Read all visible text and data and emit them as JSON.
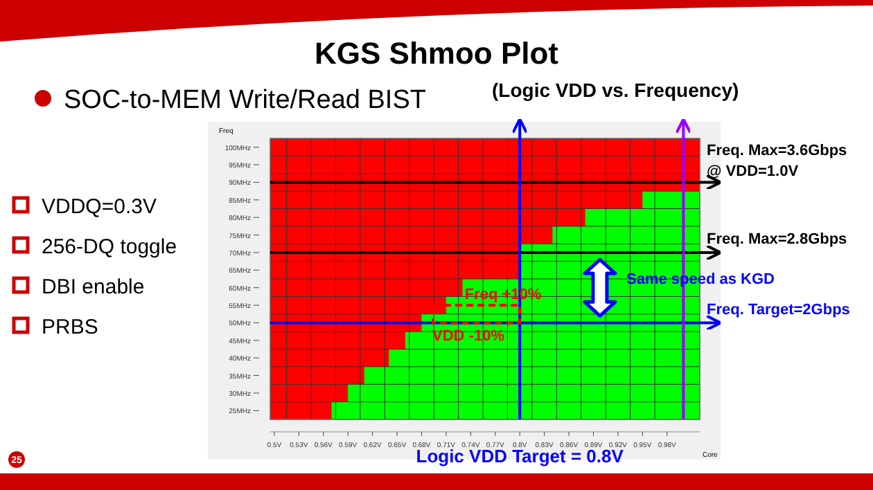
{
  "chart_data": {
    "type": "area",
    "title": "KGS Shmoo Plot",
    "subtitle": "SOC-to-MEM Write/Read BIST",
    "xlabel": "Core",
    "ylabel": "Freq",
    "x": [
      0.57,
      0.59,
      0.61,
      0.64,
      0.66,
      0.68,
      0.71,
      0.73,
      0.8,
      0.84,
      0.88,
      0.95,
      1.02
    ],
    "series": [
      {
        "color": "#00ff00",
        "values": [
          27.5,
          32.5,
          37.5,
          42.5,
          47.5,
          52.5,
          57.5,
          62.5,
          72.5,
          77.5,
          82.5,
          87.5,
          87.5
        ]
      }
    ],
    "xlim": [
      0.495,
      1.02
    ],
    "ylim": [
      22.5,
      102.5
    ],
    "xticks": [
      {
        "value": 0.5,
        "label": "0.5V"
      },
      {
        "value": 0.53,
        "label": "0.53V"
      },
      {
        "value": 0.56,
        "label": "0.56V"
      },
      {
        "value": 0.59,
        "label": "0.59V"
      },
      {
        "value": 0.62,
        "label": "0.62V"
      },
      {
        "value": 0.65,
        "label": "0.65V"
      },
      {
        "value": 0.68,
        "label": "0.68V"
      },
      {
        "value": 0.71,
        "label": "0.71V"
      },
      {
        "value": 0.74,
        "label": "0.74V"
      },
      {
        "value": 0.77,
        "label": "0.77V"
      },
      {
        "value": 0.8,
        "label": "0.8V"
      },
      {
        "value": 0.83,
        "label": "0.83V"
      },
      {
        "value": 0.86,
        "label": "0.86V"
      },
      {
        "value": 0.89,
        "label": "0.89V"
      },
      {
        "value": 0.92,
        "label": "0.92V"
      },
      {
        "value": 0.95,
        "label": "0.95V"
      },
      {
        "value": 0.98,
        "label": "0.98V"
      }
    ],
    "yticks": [
      {
        "value": 25,
        "label": "25MHz"
      },
      {
        "value": 30,
        "label": "30MHz"
      },
      {
        "value": 35,
        "label": "35MHz"
      },
      {
        "value": 40,
        "label": "40MHz"
      },
      {
        "value": 45,
        "label": "45MHz"
      },
      {
        "value": 50,
        "label": "50MHz"
      },
      {
        "value": 55,
        "label": "55MHz"
      },
      {
        "value": 60,
        "label": "60MHz"
      },
      {
        "value": 65,
        "label": "65MHz"
      },
      {
        "value": 70,
        "label": "70MHz"
      },
      {
        "value": 75,
        "label": "75MHz"
      },
      {
        "value": 80,
        "label": "80MHz"
      },
      {
        "value": 85,
        "label": "85MHz"
      },
      {
        "value": 90,
        "label": "90MHz"
      },
      {
        "value": 95,
        "label": "95MHz"
      },
      {
        "value": 100,
        "label": "100MHz"
      }
    ],
    "grid": true,
    "bands": [
      {
        "axis": "y",
        "from": 22.5,
        "to": 102.5,
        "color": "#ff0000"
      }
    ],
    "ref_lines": [
      {
        "axis": "y",
        "value": 90,
        "color": "#000000"
      },
      {
        "axis": "y",
        "value": 70,
        "color": "#000000"
      },
      {
        "axis": "y",
        "value": 50,
        "color": "#0000ff"
      },
      {
        "axis": "x",
        "value": 0.8,
        "label": "Logic VDD Target = 0.8V",
        "color": "#0000ff"
      },
      {
        "axis": "x",
        "value": 1.0,
        "label": null,
        "color": "#9900ff"
      }
    ],
    "annotations": [
      "(Logic VDD vs. Frequency)",
      "VDDQ=0.3V",
      "256-DQ toggle",
      "DBI enable",
      "PRBS",
      "25",
      "Freq +10%",
      "VDD -10%",
      "Same speed as KGD",
      "Freq. Max=3.6Gbps\n@ VDD=1.0V",
      "Freq. Max=2.8Gbps",
      "Freq. Target=2Gbps"
    ]
  }
}
